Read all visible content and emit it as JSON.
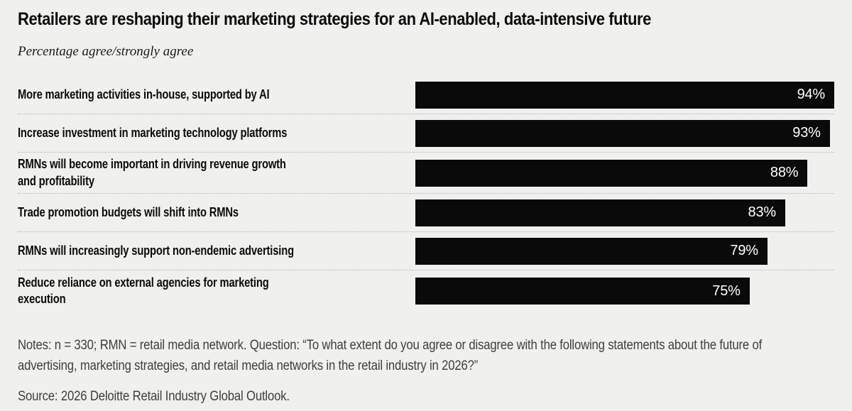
{
  "header": {
    "title": "Retailers are reshaping their marketing strategies for an AI-enabled, data-intensive future",
    "subtitle": "Percentage agree/strongly agree"
  },
  "chart_data": {
    "type": "bar",
    "orientation": "horizontal",
    "title": "Retailers are reshaping their marketing strategies for an AI-enabled, data-intensive future",
    "subtitle": "Percentage agree/strongly agree",
    "categories": [
      "More marketing activities in-house, supported by AI",
      "Increase investment in marketing technology platforms",
      "RMNs will become important in driving revenue growth\nand profitability",
      "Trade promotion budgets will shift into RMNs",
      "RMNs will increasingly support non-endemic advertising",
      "Reduce reliance on external agencies for marketing\nexecution"
    ],
    "values": [
      94,
      93,
      88,
      83,
      79,
      75
    ],
    "value_suffix": "%",
    "xlim": [
      0,
      100
    ],
    "bar_fill_reference": 94,
    "grid": false,
    "legend": false,
    "bar_color": "#0a0a0a",
    "value_label_color": "#ffffff",
    "background_color": "#f0f0ee",
    "separator_style": "dotted"
  },
  "footer": {
    "notes": "Notes: n = 330; RMN = retail media network. Question: “To what extent do you agree or disagree with the following statements about the future of\nadvertising, marketing strategies, and retail media networks in the retail industry in 2026?”",
    "source": "Source: 2026 Deloitte Retail Industry Global Outlook."
  }
}
